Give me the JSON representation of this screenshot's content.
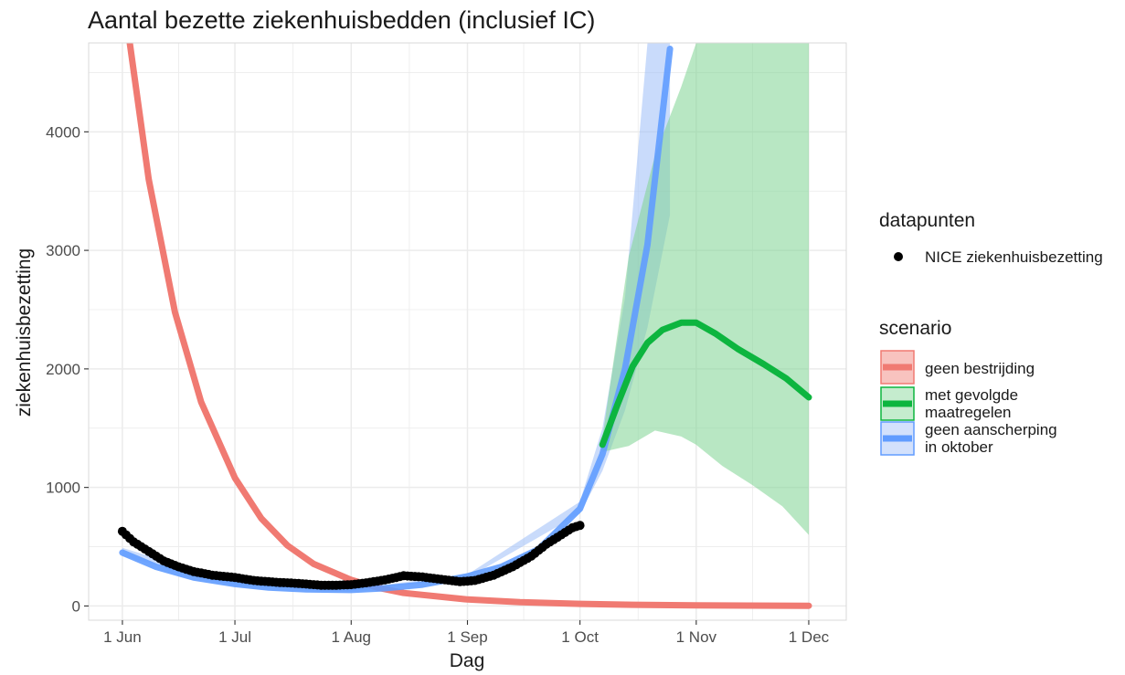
{
  "chart_data": {
    "type": "line",
    "title": "Aantal bezette ziekenhuisbedden (inclusief IC)",
    "xlabel": "Dag",
    "ylabel": "ziekenhuisbezetting",
    "x_ticks": [
      "1 Jun",
      "1 Jul",
      "1 Aug",
      "1 Sep",
      "1 Oct",
      "1 Nov",
      "1 Dec"
    ],
    "x_tick_dates": [
      "2020-06-01",
      "2020-07-01",
      "2020-08-01",
      "2020-09-01",
      "2020-10-01",
      "2020-11-01",
      "2020-12-01"
    ],
    "y_ticks": [
      "0",
      "1000",
      "2000",
      "3000",
      "4000"
    ],
    "xlim": [
      "2020-05-23",
      "2020-12-11"
    ],
    "ylim": [
      -120,
      4750
    ],
    "grid": true,
    "legend_position": "right",
    "legend": {
      "datapunten_title": "datapunten",
      "datapunten_label": "NICE ziekenhuisbezetting",
      "scenario_title": "scenario",
      "scenario_labels": [
        [
          "geen bestrijding"
        ],
        [
          "met gevolgde",
          " maatregelen"
        ],
        [
          "geen aanscherping",
          " in oktober"
        ]
      ]
    },
    "colors": {
      "geen_bestrijding": "#F07A72",
      "met_gevolgde_maatregelen": "#0DB53F",
      "met_gevolgde_band": "#7ED492",
      "geen_aanscherping": "#619CFF",
      "geen_aanscherping_band": "#9DBDF8",
      "datapunten": "#000000",
      "grid": "#EBEBEB",
      "panel_border": "#D9D9D9"
    },
    "series": [
      {
        "name": "geen bestrijding",
        "x": [
          "2020-06-01",
          "2020-06-08",
          "2020-06-15",
          "2020-06-22",
          "2020-07-01",
          "2020-07-08",
          "2020-07-15",
          "2020-07-22",
          "2020-08-01",
          "2020-08-08",
          "2020-08-15",
          "2020-09-01",
          "2020-09-15",
          "2020-10-01",
          "2020-10-15",
          "2020-11-01",
          "2020-11-15",
          "2020-12-01"
        ],
        "values": [
          5200,
          3600,
          2480,
          1720,
          1080,
          740,
          510,
          355,
          220,
          155,
          110,
          55,
          32,
          18,
          10,
          5,
          3,
          2
        ]
      },
      {
        "name": "geen aanscherping in oktober",
        "x": [
          "2020-06-01",
          "2020-06-10",
          "2020-06-20",
          "2020-07-01",
          "2020-07-10",
          "2020-07-20",
          "2020-08-01",
          "2020-08-10",
          "2020-08-20",
          "2020-09-01",
          "2020-09-10",
          "2020-09-20",
          "2020-10-01",
          "2020-10-07",
          "2020-10-13",
          "2020-10-19",
          "2020-10-25"
        ],
        "values": [
          450,
          330,
          240,
          185,
          155,
          140,
          135,
          150,
          180,
          250,
          330,
          480,
          820,
          1280,
          2000,
          3050,
          4700
        ],
        "band_x": [
          "2020-06-01",
          "2020-07-01",
          "2020-08-01",
          "2020-09-01",
          "2020-10-01",
          "2020-10-07",
          "2020-10-13",
          "2020-10-19",
          "2020-10-25"
        ],
        "band_lower": [
          420,
          170,
          125,
          235,
          780,
          1140,
          1650,
          2350,
          3300
        ],
        "band_upper": [
          490,
          200,
          145,
          265,
          880,
          1500,
          2600,
          4750,
          4750
        ]
      },
      {
        "name": "met gevolgde maatregelen",
        "x": [
          "2020-10-07",
          "2020-10-11",
          "2020-10-15",
          "2020-10-19",
          "2020-10-23",
          "2020-10-28",
          "2020-11-01",
          "2020-11-06",
          "2020-11-12",
          "2020-11-19",
          "2020-11-25",
          "2020-12-01"
        ],
        "values": [
          1360,
          1700,
          2020,
          2220,
          2330,
          2390,
          2390,
          2300,
          2170,
          2040,
          1920,
          1760
        ],
        "band_x": [
          "2020-10-07",
          "2020-10-14",
          "2020-10-21",
          "2020-10-28",
          "2020-11-01",
          "2020-11-08",
          "2020-11-16",
          "2020-11-24",
          "2020-12-01"
        ],
        "band_lower": [
          1300,
          1350,
          1480,
          1430,
          1360,
          1180,
          1020,
          840,
          600
        ],
        "band_upper": [
          1420,
          2950,
          3800,
          4380,
          4750,
          4750,
          4750,
          4750,
          4750
        ]
      },
      {
        "name": "NICE ziekenhuisbezetting",
        "x": [
          "2020-06-01",
          "2020-06-04",
          "2020-06-08",
          "2020-06-12",
          "2020-06-16",
          "2020-06-20",
          "2020-06-25",
          "2020-07-01",
          "2020-07-06",
          "2020-07-12",
          "2020-07-18",
          "2020-07-24",
          "2020-07-28",
          "2020-08-01",
          "2020-08-05",
          "2020-08-10",
          "2020-08-15",
          "2020-08-20",
          "2020-08-25",
          "2020-08-30",
          "2020-09-03",
          "2020-09-08",
          "2020-09-13",
          "2020-09-18",
          "2020-09-22",
          "2020-09-26",
          "2020-09-29",
          "2020-10-01"
        ],
        "values": [
          630,
          540,
          460,
          380,
          330,
          290,
          260,
          240,
          215,
          200,
          190,
          175,
          175,
          180,
          195,
          220,
          255,
          245,
          225,
          205,
          215,
          260,
          330,
          420,
          520,
          600,
          660,
          680
        ]
      }
    ]
  }
}
